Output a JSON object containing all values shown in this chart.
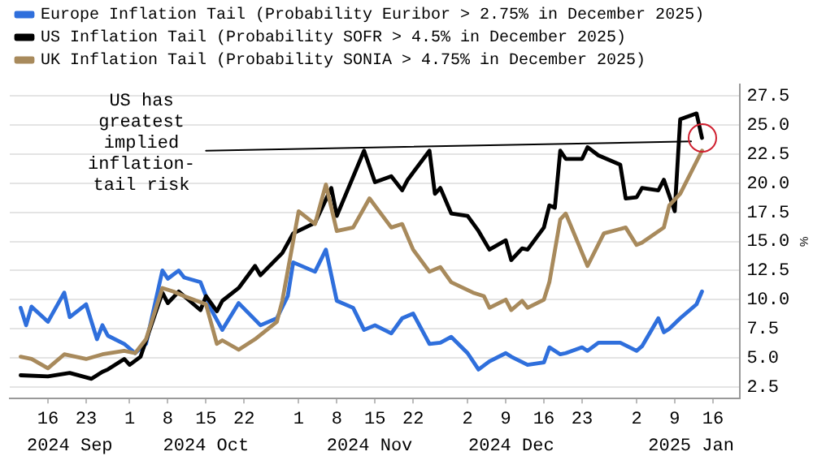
{
  "chart_data": {
    "type": "line",
    "annotations": [
      "US has greatest implied inflation-tail risk"
    ],
    "ylabel": "%",
    "series": [
      {
        "name": "Europe Inflation Tail (Probability Euribor > 2.75% in December 2025)",
        "color": "#2f6fdc",
        "x": [
          "2024-09-11",
          "2024-09-12",
          "2024-09-13",
          "2024-09-16",
          "2024-09-19",
          "2024-09-20",
          "2024-09-23",
          "2024-09-25",
          "2024-09-26",
          "2024-09-27",
          "2024-09-30",
          "2024-10-02",
          "2024-10-04",
          "2024-10-07",
          "2024-10-08",
          "2024-10-10",
          "2024-10-11",
          "2024-10-14",
          "2024-10-16",
          "2024-10-18",
          "2024-10-21",
          "2024-10-25",
          "2024-10-28",
          "2024-10-30",
          "2024-10-31",
          "2024-11-04",
          "2024-11-06",
          "2024-11-08",
          "2024-11-11",
          "2024-11-13",
          "2024-11-15",
          "2024-11-18",
          "2024-11-20",
          "2024-11-22",
          "2024-11-25",
          "2024-11-27",
          "2024-11-29",
          "2024-12-02",
          "2024-12-04",
          "2024-12-06",
          "2024-12-09",
          "2024-12-10",
          "2024-12-13",
          "2024-12-16",
          "2024-12-17",
          "2024-12-19",
          "2024-12-20",
          "2024-12-23",
          "2024-12-24",
          "2024-12-26",
          "2024-12-30",
          "2025-01-02",
          "2025-01-03",
          "2025-01-06",
          "2025-01-07",
          "2025-01-08",
          "2025-01-10",
          "2025-01-13",
          "2025-01-14"
        ],
        "values": [
          9.3,
          7.8,
          9.4,
          8.1,
          10.6,
          8.5,
          9.6,
          6.6,
          7.8,
          6.9,
          6.2,
          5.4,
          6.2,
          12.5,
          11.8,
          12.5,
          11.9,
          11.5,
          9.1,
          7.4,
          9.7,
          7.8,
          8.4,
          10.3,
          13.2,
          12.4,
          14.3,
          9.9,
          9.3,
          7.4,
          7.8,
          7.1,
          8.4,
          8.8,
          6.2,
          6.3,
          6.8,
          5.4,
          4.0,
          4.7,
          5.4,
          5.1,
          4.4,
          4.6,
          5.9,
          5.3,
          5.4,
          5.9,
          5.6,
          6.3,
          6.3,
          5.6,
          6.0,
          8.4,
          7.2,
          7.5,
          8.4,
          9.6,
          10.7
        ]
      },
      {
        "name": "US Inflation Tail (Probability SOFR > 4.5% in December 2025)",
        "color": "#000000",
        "x": [
          "2024-09-11",
          "2024-09-16",
          "2024-09-20",
          "2024-09-24",
          "2024-09-26",
          "2024-09-27",
          "2024-09-30",
          "2024-10-01",
          "2024-10-03",
          "2024-10-07",
          "2024-10-08",
          "2024-10-10",
          "2024-10-14",
          "2024-10-15",
          "2024-10-17",
          "2024-10-18",
          "2024-10-21",
          "2024-10-24",
          "2024-10-25",
          "2024-10-29",
          "2024-10-31",
          "2024-11-04",
          "2024-11-07",
          "2024-11-08",
          "2024-11-13",
          "2024-11-15",
          "2024-11-18",
          "2024-11-20",
          "2024-11-21",
          "2024-11-25",
          "2024-11-26",
          "2024-11-27",
          "2024-11-29",
          "2024-12-02",
          "2024-12-04",
          "2024-12-06",
          "2024-12-09",
          "2024-12-10",
          "2024-12-12",
          "2024-12-13",
          "2024-12-16",
          "2024-12-17",
          "2024-12-18",
          "2024-12-19",
          "2024-12-20",
          "2024-12-23",
          "2024-12-24",
          "2024-12-26",
          "2024-12-30",
          "2024-12-31",
          "2025-01-02",
          "2025-01-03",
          "2025-01-06",
          "2025-01-07",
          "2025-01-09",
          "2025-01-10",
          "2025-01-13",
          "2025-01-14"
        ],
        "values": [
          3.5,
          3.4,
          3.7,
          3.2,
          3.8,
          4.0,
          4.9,
          4.4,
          5.1,
          10.6,
          9.7,
          10.7,
          9.1,
          10.3,
          9.0,
          9.9,
          11.0,
          12.9,
          12.1,
          14.0,
          15.7,
          16.6,
          19.6,
          17.2,
          22.8,
          20.1,
          20.6,
          19.4,
          20.3,
          22.8,
          19.1,
          19.6,
          17.4,
          17.2,
          15.9,
          14.3,
          15.1,
          13.4,
          14.4,
          14.3,
          16.2,
          18.1,
          17.9,
          22.8,
          22.1,
          22.1,
          23.1,
          22.4,
          21.6,
          18.7,
          18.8,
          19.6,
          19.4,
          20.3,
          17.6,
          25.5,
          26.0,
          23.9
        ]
      },
      {
        "name": "UK Inflation Tail (Probability SONIA > 4.75% in December 2025)",
        "color": "#a88a5c",
        "x": [
          "2024-09-11",
          "2024-09-13",
          "2024-09-16",
          "2024-09-19",
          "2024-09-23",
          "2024-09-26",
          "2024-09-30",
          "2024-10-02",
          "2024-10-04",
          "2024-10-07",
          "2024-10-09",
          "2024-10-11",
          "2024-10-15",
          "2024-10-17",
          "2024-10-18",
          "2024-10-21",
          "2024-10-24",
          "2024-10-28",
          "2024-10-29",
          "2024-11-01",
          "2024-11-04",
          "2024-11-06",
          "2024-11-08",
          "2024-11-11",
          "2024-11-14",
          "2024-11-18",
          "2024-11-20",
          "2024-11-22",
          "2024-11-25",
          "2024-11-27",
          "2024-11-29",
          "2024-12-03",
          "2024-12-05",
          "2024-12-06",
          "2024-12-09",
          "2024-12-10",
          "2024-12-12",
          "2024-12-13",
          "2024-12-16",
          "2024-12-17",
          "2024-12-19",
          "2024-12-20",
          "2024-12-24",
          "2024-12-27",
          "2024-12-31",
          "2025-01-02",
          "2025-01-03",
          "2025-01-07",
          "2025-01-08",
          "2025-01-10",
          "2025-01-14"
        ],
        "values": [
          5.1,
          4.9,
          4.1,
          5.3,
          4.9,
          5.3,
          5.6,
          5.4,
          6.6,
          11.0,
          10.7,
          10.3,
          9.6,
          6.2,
          6.5,
          5.7,
          6.6,
          8.1,
          9.9,
          17.6,
          16.5,
          19.9,
          15.9,
          16.2,
          18.7,
          16.2,
          16.5,
          14.3,
          12.4,
          12.8,
          11.5,
          10.6,
          10.3,
          9.3,
          10.0,
          9.1,
          9.9,
          9.3,
          10.0,
          11.5,
          16.9,
          17.4,
          12.9,
          15.7,
          16.2,
          14.7,
          14.9,
          16.2,
          18.1,
          19.1,
          22.8
        ]
      },
      {
        "type": "line",
        "color": "#000000",
        "x": [
          "2024-10-15",
          "2025-01-12"
        ],
        "values": [
          22.8,
          23.6
        ]
      }
    ],
    "xlim": [
      "2024-09-09",
      "2025-01-21"
    ],
    "xticks": [
      {
        "value": "2024-09-16",
        "label": "16"
      },
      {
        "value": "2024-09-23",
        "label": "23"
      },
      {
        "value": "2024-10-01",
        "label": "1"
      },
      {
        "value": "2024-10-08",
        "label": "8"
      },
      {
        "value": "2024-10-15",
        "label": "15"
      },
      {
        "value": "2024-10-22",
        "label": "22"
      },
      {
        "value": "2024-11-01",
        "label": "1"
      },
      {
        "value": "2024-11-08",
        "label": "8"
      },
      {
        "value": "2024-11-15",
        "label": "15"
      },
      {
        "value": "2024-11-22",
        "label": "22"
      },
      {
        "value": "2024-12-02",
        "label": "2"
      },
      {
        "value": "2024-12-09",
        "label": "9"
      },
      {
        "value": "2024-12-16",
        "label": "16"
      },
      {
        "value": "2024-12-23",
        "label": "23"
      },
      {
        "value": "2025-01-02",
        "label": "2"
      },
      {
        "value": "2025-01-09",
        "label": "9"
      },
      {
        "value": "2025-01-16",
        "label": "16"
      }
    ],
    "x2lim": [
      "2024-09-09",
      "2025-01-21"
    ],
    "x2ticks": [
      {
        "value": "2024-09-20",
        "label": "2024 Sep"
      },
      {
        "value": "2024-10-15",
        "label": "2024 Oct"
      },
      {
        "value": "2024-11-14",
        "label": "2024 Nov"
      },
      {
        "value": "2024-12-10",
        "label": "2024 Dec"
      },
      {
        "value": "2025-01-12",
        "label": "2025 Jan"
      }
    ],
    "ylim": [
      1.5,
      28.5
    ],
    "yticks": [
      2.5,
      {
        "value": 5,
        "label": "5.0"
      },
      7.5,
      {
        "value": 10,
        "label": "10.0"
      },
      12.5,
      {
        "value": 15,
        "label": "15.0"
      },
      17.5,
      {
        "value": 20,
        "label": "20.0"
      },
      22.5,
      {
        "value": 25,
        "label": "25.0"
      },
      27.5
    ],
    "grid": "y",
    "legend": "top left",
    "marker": "none",
    "line_style": "solid"
  }
}
